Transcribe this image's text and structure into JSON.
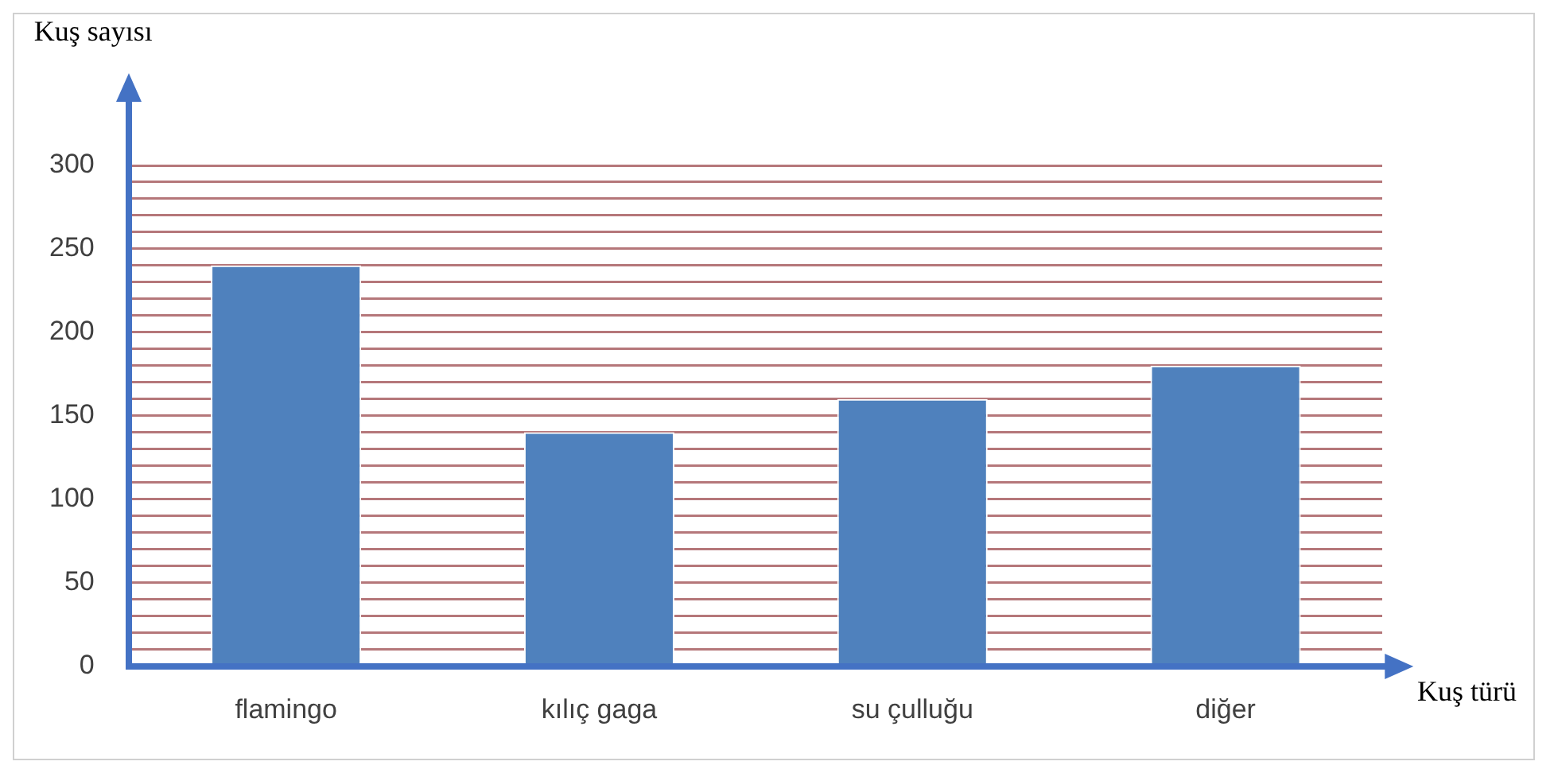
{
  "chart_data": {
    "type": "bar",
    "xlabel": "Kuş türü",
    "ylabel": "Kuş sayısı",
    "categories": [
      "flamingo",
      "kılıç gaga",
      "su çulluğu",
      "diğer"
    ],
    "values": [
      240,
      140,
      160,
      180
    ],
    "color": "#4f81bd",
    "ylim": [
      0,
      300
    ],
    "yticks": [
      0,
      {
        "value": 10,
        "label": null
      },
      {
        "value": 20,
        "label": null
      },
      {
        "value": 30,
        "label": null
      },
      {
        "value": 40,
        "label": null
      },
      50,
      {
        "value": 60,
        "label": null
      },
      {
        "value": 70,
        "label": null
      },
      {
        "value": 80,
        "label": null
      },
      {
        "value": 90,
        "label": null
      },
      100,
      {
        "value": 110,
        "label": null
      },
      {
        "value": 120,
        "label": null
      },
      {
        "value": 130,
        "label": null
      },
      {
        "value": 140,
        "label": null
      },
      150,
      {
        "value": 160,
        "label": null
      },
      {
        "value": 170,
        "label": null
      },
      {
        "value": 180,
        "label": null
      },
      {
        "value": 190,
        "label": null
      },
      200,
      {
        "value": 210,
        "label": null
      },
      {
        "value": 220,
        "label": null
      },
      {
        "value": 230,
        "label": null
      },
      {
        "value": 240,
        "label": null
      },
      250,
      {
        "value": 260,
        "label": null
      },
      {
        "value": 270,
        "label": null
      },
      {
        "value": 280,
        "label": null
      },
      {
        "value": 290,
        "label": null
      },
      300
    ],
    "grid": "y"
  }
}
